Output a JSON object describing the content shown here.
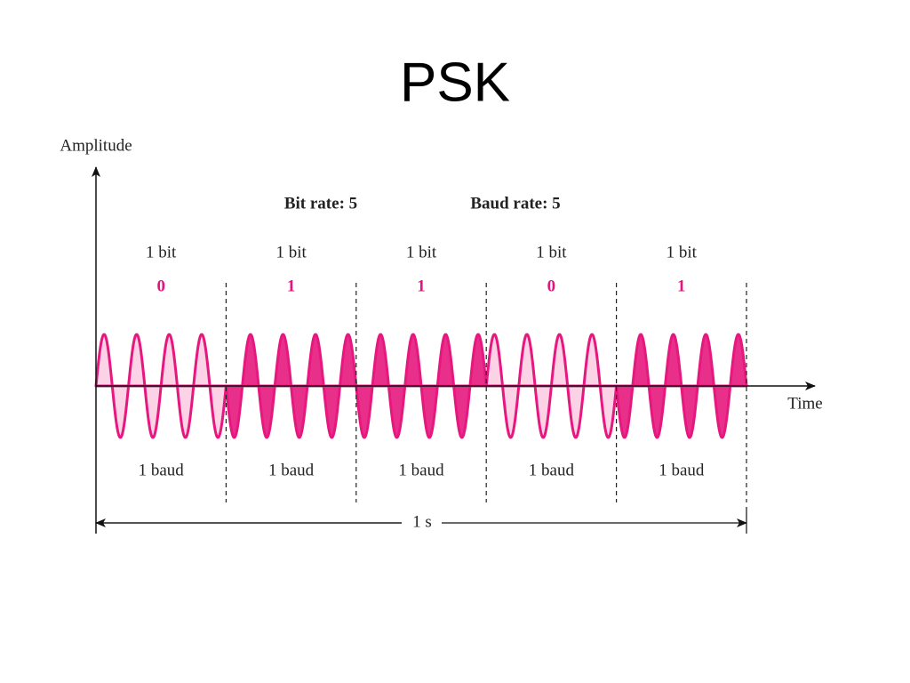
{
  "title": "PSK",
  "axes": {
    "y_label": "Amplitude",
    "x_label": "Time"
  },
  "rates": {
    "bit_rate": "Bit rate: 5",
    "baud_rate": "Baud rate: 5"
  },
  "segments": [
    {
      "bit_label": "1 bit",
      "bit": "0",
      "baud_label": "1 baud"
    },
    {
      "bit_label": "1 bit",
      "bit": "1",
      "baud_label": "1 baud"
    },
    {
      "bit_label": "1 bit",
      "bit": "1",
      "baud_label": "1 baud"
    },
    {
      "bit_label": "1 bit",
      "bit": "0",
      "baud_label": "1 baud"
    },
    {
      "bit_label": "1 bit",
      "bit": "1",
      "baud_label": "1 baud"
    }
  ],
  "duration": "1 s"
}
